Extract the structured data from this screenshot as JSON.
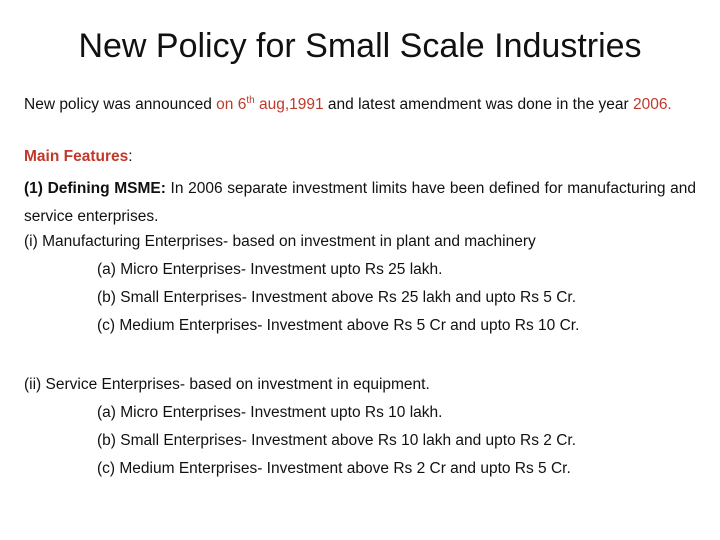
{
  "title": "New Policy for Small Scale Industries",
  "intro": {
    "part1": "New policy was announced ",
    "date_prefix": "on 6",
    "date_sup": "th",
    "date_suffix": " aug,1991",
    "part2": " and latest amendment was done in the year ",
    "year": "2006.",
    "colors": {
      "highlight": "#c0392b",
      "text": "#111111"
    }
  },
  "main_features": {
    "label": "Main Features",
    "colon": ":"
  },
  "definition": {
    "label": "(1) Defining MSME:",
    "text": " In 2006 separate investment limits have been defined for manufacturing and service enterprises."
  },
  "manufacturing": {
    "heading": "(i) Manufacturing Enterprises- based on investment in plant and machinery",
    "items": [
      "(a) Micro Enterprises- Investment upto Rs 25 lakh.",
      "(b) Small Enterprises- Investment above Rs 25 lakh and upto Rs 5 Cr.",
      "(c) Medium Enterprises- Investment above Rs 5 Cr and upto Rs 10 Cr."
    ]
  },
  "service": {
    "heading": "(ii) Service Enterprises- based on investment in equipment.",
    "items": [
      "(a) Micro Enterprises- Investment upto Rs 10 lakh.",
      "(b) Small Enterprises- Investment above Rs 10 lakh and upto Rs 2 Cr.",
      "(c) Medium Enterprises- Investment above Rs 2 Cr and upto Rs 5 Cr."
    ]
  }
}
